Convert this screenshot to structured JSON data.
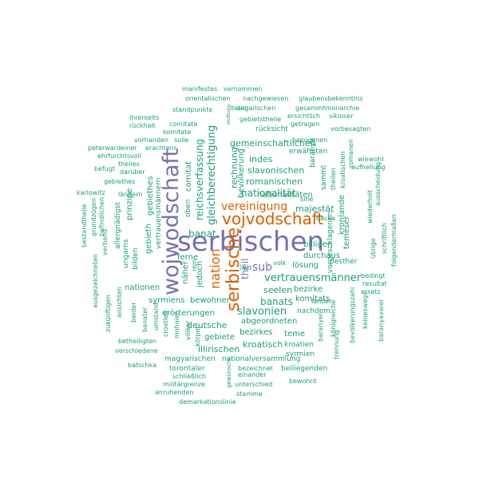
{
  "palette": {
    "purple": "#7570b3",
    "orange": "#d95f02",
    "teal": "#1b9e77"
  },
  "words": [
    {
      "text": "serbischen",
      "color": "purple"
    },
    {
      "text": "wojwodschaft",
      "color": "purple"
    },
    {
      "text": "vojvodschaft",
      "color": "orange"
    },
    {
      "text": "serbische",
      "color": "orange"
    },
    {
      "text": "nation",
      "color": "orange"
    },
    {
      "text": "vereinigung",
      "color": "orange"
    },
    {
      "text": "theil",
      "color": "purple"
    },
    {
      "text": "sub",
      "color": "purple"
    },
    {
      "text": "gleichberechtigung",
      "color": "teal"
    },
    {
      "text": "reichsverfassung",
      "color": "teal"
    },
    {
      "text": "vertrauensmänner",
      "color": "teal"
    },
    {
      "text": "nationalität",
      "color": "teal"
    },
    {
      "text": "slavonien",
      "color": "teal"
    },
    {
      "text": "banats",
      "color": "teal"
    },
    {
      "text": "gemeinschaftlichen",
      "color": "teal"
    },
    {
      "text": "slavonischen",
      "color": "teal"
    },
    {
      "text": "romanischen",
      "color": "teal"
    },
    {
      "text": "nationalitäten",
      "color": "teal"
    },
    {
      "text": "majestät",
      "color": "teal"
    },
    {
      "text": "indes",
      "color": "teal"
    },
    {
      "text": "rechnung",
      "color": "teal"
    },
    {
      "text": "bevölkerung",
      "color": "teal"
    },
    {
      "text": "banat",
      "color": "teal"
    },
    {
      "text": "seelen",
      "color": "teal"
    },
    {
      "text": "bezirke",
      "color": "teal"
    },
    {
      "text": "billigen",
      "color": "teal"
    },
    {
      "text": "durchaus",
      "color": "teal"
    },
    {
      "text": "lösung",
      "color": "teal"
    },
    {
      "text": "abgeordneten",
      "color": "teal"
    },
    {
      "text": "komitats",
      "color": "teal"
    },
    {
      "text": "nachdem",
      "color": "teal"
    },
    {
      "text": "bezirkes",
      "color": "teal"
    },
    {
      "text": "teme",
      "color": "teal"
    },
    {
      "text": "kroatisch",
      "color": "teal"
    },
    {
      "text": "kroatien",
      "color": "teal"
    },
    {
      "text": "syrmien",
      "color": "teal"
    },
    {
      "text": "erörterungen",
      "color": "teal"
    },
    {
      "text": "deutsche",
      "color": "teal"
    },
    {
      "text": "gebiete",
      "color": "teal"
    },
    {
      "text": "illirischen",
      "color": "teal"
    },
    {
      "text": "bewohner",
      "color": "teal"
    },
    {
      "text": "syrmiens",
      "color": "teal"
    },
    {
      "text": "nationen",
      "color": "teal"
    },
    {
      "text": "ferne",
      "color": "teal"
    },
    {
      "text": "volk",
      "color": "teal"
    },
    {
      "text": "pesther",
      "color": "teal"
    },
    {
      "text": "länder",
      "color": "teal"
    },
    {
      "text": "laut",
      "color": "teal"
    },
    {
      "text": "nationalversammlung",
      "color": "teal"
    },
    {
      "text": "magyarischen",
      "color": "teal"
    },
    {
      "text": "torontaler",
      "color": "teal"
    },
    {
      "text": "einander",
      "color": "teal"
    },
    {
      "text": "bezeichnet",
      "color": "teal"
    },
    {
      "text": "beiliegenden",
      "color": "teal"
    },
    {
      "text": "schließlich",
      "color": "teal"
    },
    {
      "text": "militärgrenze",
      "color": "teal"
    },
    {
      "text": "unterschied",
      "color": "teal"
    },
    {
      "text": "bewohnt",
      "color": "teal"
    },
    {
      "text": "anruhenden",
      "color": "teal"
    },
    {
      "text": "stamme",
      "color": "teal"
    },
    {
      "text": "demarkationslinie",
      "color": "teal"
    },
    {
      "text": "batschka",
      "color": "teal"
    },
    {
      "text": "verschiedene",
      "color": "teal"
    },
    {
      "text": "betheiligten",
      "color": "teal"
    },
    {
      "text": "manifestes",
      "color": "teal"
    },
    {
      "text": "vernommen",
      "color": "teal"
    },
    {
      "text": "orientalischen",
      "color": "teal"
    },
    {
      "text": "nachgewiesen",
      "color": "teal"
    },
    {
      "text": "glaubensbekenntnis",
      "color": "teal"
    },
    {
      "text": "standpunkte",
      "color": "teal"
    },
    {
      "text": "ungarischen",
      "color": "teal"
    },
    {
      "text": "gesammtmonarchie",
      "color": "teal"
    },
    {
      "text": "ihrerseits",
      "color": "teal"
    },
    {
      "text": "rückhalt",
      "color": "teal"
    },
    {
      "text": "comitate",
      "color": "teal"
    },
    {
      "text": "komitate",
      "color": "teal"
    },
    {
      "text": "daten",
      "color": "teal"
    },
    {
      "text": "gebietstheile",
      "color": "teal"
    },
    {
      "text": "ersichtlich",
      "color": "teal"
    },
    {
      "text": "sikloser",
      "color": "teal"
    },
    {
      "text": "getragen",
      "color": "teal"
    },
    {
      "text": "vorbesagten",
      "color": "teal"
    },
    {
      "text": "vorhanden",
      "color": "teal"
    },
    {
      "text": "solle",
      "color": "teal"
    },
    {
      "text": "rücksicht",
      "color": "teal"
    },
    {
      "text": "bezogenen",
      "color": "teal"
    },
    {
      "text": "peterwardeiner",
      "color": "teal"
    },
    {
      "text": "erachtens",
      "color": "teal"
    },
    {
      "text": "erwähnten",
      "color": "teal"
    },
    {
      "text": "ehrfurchtsvoll",
      "color": "teal"
    },
    {
      "text": "theiles",
      "color": "teal"
    },
    {
      "text": "befugt",
      "color": "teal"
    },
    {
      "text": "darüber",
      "color": "teal"
    },
    {
      "text": "gebiethes",
      "color": "teal"
    },
    {
      "text": "wiewohl",
      "color": "teal"
    },
    {
      "text": "aufhellung",
      "color": "teal"
    },
    {
      "text": "karlowitz",
      "color": "teal"
    },
    {
      "text": "ländern",
      "color": "teal"
    },
    {
      "text": "sine",
      "color": "teal"
    },
    {
      "text": "backa",
      "color": "teal"
    },
    {
      "text": "bedingt",
      "color": "teal"
    },
    {
      "text": "resultat",
      "color": "teal"
    },
    {
      "text": "ersatz",
      "color": "teal"
    },
    {
      "text": "endtung",
      "color": "teal"
    },
    {
      "text": "comitat",
      "color": "teal"
    },
    {
      "text": "oben",
      "color": "teal"
    },
    {
      "text": "prinzipe",
      "color": "teal"
    },
    {
      "text": "gebieth",
      "color": "teal"
    },
    {
      "text": "gebiethes",
      "color": "teal"
    },
    {
      "text": "vertrauensmännern",
      "color": "teal"
    },
    {
      "text": "allergnädigst",
      "color": "teal"
    },
    {
      "text": "ungarns",
      "color": "teal"
    },
    {
      "text": "bilden",
      "color": "teal"
    },
    {
      "text": "näher",
      "color": "teal"
    },
    {
      "text": "rein",
      "color": "teal"
    },
    {
      "text": "jedoch",
      "color": "teal"
    },
    {
      "text": "baranya",
      "color": "teal"
    },
    {
      "text": "sammt",
      "color": "teal"
    },
    {
      "text": "theilen",
      "color": "teal"
    },
    {
      "text": "kroatischen",
      "color": "teal"
    },
    {
      "text": "romanen",
      "color": "teal"
    },
    {
      "text": "kronlande",
      "color": "teal"
    },
    {
      "text": "temeser",
      "color": "teal"
    },
    {
      "text": "vorgeschlagenen",
      "color": "teal"
    },
    {
      "text": "königreiche",
      "color": "teal"
    },
    {
      "text": "bevölkerungszahl",
      "color": "teal"
    },
    {
      "text": "baranyer",
      "color": "teal"
    },
    {
      "text": "trennung",
      "color": "teal"
    },
    {
      "text": "wiederholt",
      "color": "teal"
    },
    {
      "text": "ausscheidung",
      "color": "teal"
    },
    {
      "text": "übrige",
      "color": "teal"
    },
    {
      "text": "schriftlich",
      "color": "teal"
    },
    {
      "text": "folgendermaßen",
      "color": "teal"
    },
    {
      "text": "keineswegs",
      "color": "teal"
    },
    {
      "text": "baranyavarer",
      "color": "teal"
    },
    {
      "text": "bestandtheile",
      "color": "teal"
    },
    {
      "text": "grundzügen",
      "color": "teal"
    },
    {
      "text": "befindlichen",
      "color": "teal"
    },
    {
      "text": "verband",
      "color": "teal"
    },
    {
      "text": "ausgezeichneten",
      "color": "teal"
    },
    {
      "text": "zukünftigen",
      "color": "teal"
    },
    {
      "text": "ansichten",
      "color": "teal"
    },
    {
      "text": "beider",
      "color": "teal"
    },
    {
      "text": "banater",
      "color": "teal"
    },
    {
      "text": "umstand",
      "color": "teal"
    },
    {
      "text": "croatien",
      "color": "teal"
    },
    {
      "text": "mohaier",
      "color": "teal"
    },
    {
      "text": "völker",
      "color": "teal"
    },
    {
      "text": "körper",
      "color": "teal"
    },
    {
      "text": "gewünscht",
      "color": "teal"
    }
  ]
}
